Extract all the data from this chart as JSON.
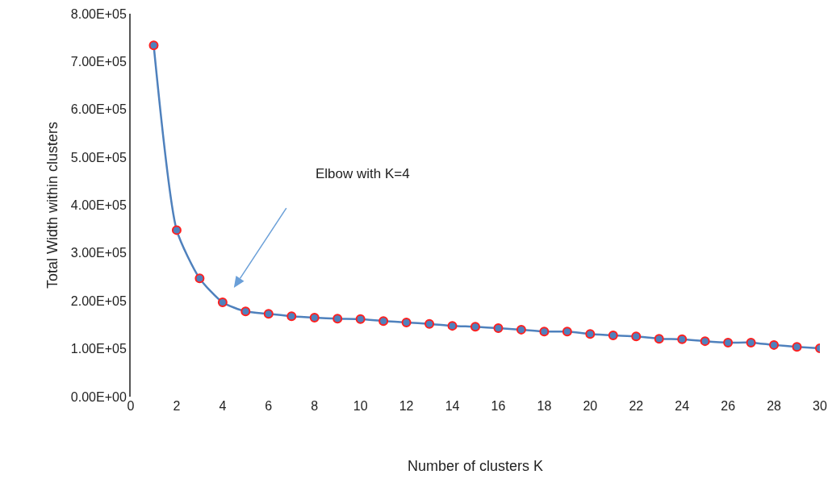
{
  "chart_data": {
    "type": "line",
    "xlabel": "Number of clusters K",
    "ylabel": "Total Width within clusters",
    "x": [
      1,
      2,
      3,
      4,
      5,
      6,
      7,
      8,
      9,
      10,
      11,
      12,
      13,
      14,
      15,
      16,
      17,
      18,
      19,
      20,
      21,
      22,
      23,
      24,
      25,
      26,
      27,
      28,
      29,
      30
    ],
    "series": [
      {
        "color": "#4f81bd",
        "values": [
          734000,
          348000,
          247000,
          197000,
          178000,
          173000,
          168000,
          165000,
          163000,
          162000,
          158000,
          155000,
          152000,
          148000,
          146000,
          143000,
          140000,
          136000,
          136000,
          131000,
          128000,
          126000,
          121000,
          120000,
          116000,
          113000,
          113000,
          108000,
          104000,
          101000
        ]
      }
    ],
    "marker": "circle",
    "line_style": "solid",
    "grid": false,
    "xlim": [
      0,
      30
    ],
    "xticks": [
      0,
      2,
      4,
      6,
      8,
      10,
      12,
      14,
      16,
      18,
      20,
      22,
      24,
      26,
      28,
      30
    ],
    "ylim": [
      0,
      800000
    ],
    "yticks": [
      {
        "value": 0,
        "label": "0.00E+00"
      },
      {
        "value": 100000,
        "label": "1.00E+05"
      },
      {
        "value": 200000,
        "label": "2.00E+05"
      },
      {
        "value": 300000,
        "label": "3.00E+05"
      },
      {
        "value": 400000,
        "label": "4.00E+05"
      },
      {
        "value": 500000,
        "label": "5.00E+05"
      },
      {
        "value": 600000,
        "label": "6.00E+05"
      },
      {
        "value": 700000,
        "label": "7.00E+05"
      },
      {
        "value": 800000,
        "label": "8.00E+05"
      }
    ],
    "annotations": [
      "Elbow with K=4"
    ]
  }
}
